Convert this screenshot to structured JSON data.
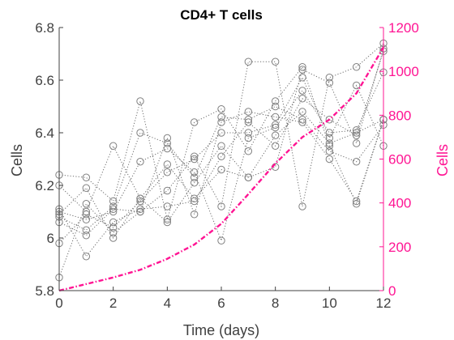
{
  "chart_data": {
    "type": "line",
    "title": "CD4+ T cells",
    "xlabel": "Time (days)",
    "ylabel_left": "Cells",
    "ylabel_right": "Cells",
    "xlim": [
      0,
      12
    ],
    "ylim_left": [
      5.8,
      6.8
    ],
    "ylim_right": [
      0,
      1200
    ],
    "x_ticks": [
      "0",
      "2",
      "4",
      "6",
      "8",
      "10",
      "12"
    ],
    "y_left_ticks": [
      "5.8",
      "6",
      "6.2",
      "6.4",
      "6.6",
      "6.8"
    ],
    "y_right_ticks": [
      "0",
      "200",
      "400",
      "600",
      "800",
      "1000",
      "1200"
    ],
    "grid": false,
    "colors": {
      "left_axis": "#404040",
      "right_axis": "#ff1493",
      "replicates": "#808080",
      "mean": "#ff1493"
    },
    "x": [
      0,
      1,
      2,
      3,
      4,
      5,
      6,
      7,
      8,
      9,
      10,
      11,
      12
    ],
    "series_left": [
      {
        "values": [
          5.85,
          6.13,
          6.02,
          6.1,
          6.18,
          6.31,
          6.12,
          6.67,
          6.67,
          6.12,
          6.61,
          6.65,
          6.74
        ]
      },
      {
        "values": [
          6.24,
          6.23,
          6.14,
          6.52,
          6.07,
          6.44,
          6.49,
          6.33,
          6.52,
          6.65,
          6.35,
          6.13,
          6.45
        ]
      },
      {
        "values": [
          6.2,
          6.1,
          6.35,
          6.15,
          6.28,
          6.15,
          6.26,
          6.23,
          6.27,
          6.64,
          6.59,
          6.36,
          6.72
        ]
      },
      {
        "values": [
          6.1,
          6.07,
          6.1,
          6.29,
          6.34,
          6.25,
          5.99,
          6.38,
          6.42,
          6.56,
          6.4,
          6.41,
          6.63
        ]
      },
      {
        "values": [
          6.08,
          6.03,
          6.12,
          6.4,
          6.36,
          6.23,
          6.46,
          6.45,
          6.5,
          6.45,
          6.33,
          6.29,
          6.43
        ]
      },
      {
        "values": [
          5.98,
          6.09,
          6.04,
          6.14,
          6.25,
          6.3,
          6.4,
          6.4,
          6.43,
          6.61,
          6.38,
          6.58,
          6.35
        ]
      },
      {
        "values": [
          6.11,
          5.93,
          6.06,
          6.11,
          6.12,
          6.14,
          6.31,
          6.44,
          6.35,
          6.53,
          6.45,
          6.39,
          6.71
        ]
      },
      {
        "values": [
          6.06,
          6.01,
          6.11,
          6.1,
          6.38,
          6.09,
          6.44,
          6.48,
          6.46,
          6.44,
          6.3,
          6.14,
          6.45
        ]
      },
      {
        "values": [
          6.09,
          6.19,
          6.0,
          6.15,
          6.06,
          6.21,
          6.35,
          6.23,
          6.39,
          6.48,
          6.36,
          6.4,
          6.45
        ]
      }
    ],
    "series_right": [
      {
        "values": [
          0,
          30,
          60,
          95,
          145,
          210,
          305,
          440,
          580,
          700,
          780,
          900,
          1110
        ]
      }
    ]
  }
}
